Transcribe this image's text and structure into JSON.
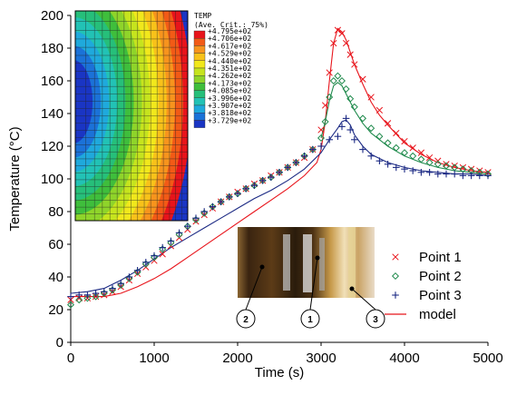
{
  "chart_data": {
    "type": "scatter",
    "xlabel": "Time (s)",
    "ylabel": "Temperature (°C)",
    "xlim": [
      0,
      5000
    ],
    "ylim": [
      0,
      200
    ],
    "xticks": [
      0,
      1000,
      2000,
      3000,
      4000,
      5000
    ],
    "yticks": [
      0,
      20,
      40,
      60,
      80,
      100,
      120,
      140,
      160,
      180,
      200
    ],
    "legend_position": "right",
    "series": [
      {
        "name": "Point 1",
        "marker": "x",
        "color": "#e8141b",
        "x": [
          0,
          100,
          200,
          300,
          400,
          500,
          600,
          700,
          800,
          900,
          1000,
          1100,
          1200,
          1300,
          1400,
          1500,
          1600,
          1700,
          1800,
          1900,
          2000,
          2100,
          2200,
          2300,
          2400,
          2500,
          2600,
          2700,
          2800,
          2900,
          3000,
          3050,
          3100,
          3150,
          3200,
          3250,
          3300,
          3350,
          3400,
          3500,
          3600,
          3700,
          3800,
          3900,
          4000,
          4100,
          4200,
          4300,
          4400,
          4500,
          4600,
          4700,
          4800,
          4900,
          5000
        ],
        "y": [
          26,
          27,
          27,
          28,
          29,
          31,
          34,
          38,
          42,
          46,
          50,
          54,
          59,
          64,
          69,
          74,
          78,
          82,
          86,
          89,
          92,
          94,
          97,
          99,
          102,
          104,
          107,
          110,
          113,
          118,
          130,
          145,
          165,
          183,
          191,
          189,
          183,
          176,
          170,
          161,
          150,
          142,
          134,
          128,
          123,
          119,
          116,
          113,
          111,
          109,
          108,
          107,
          106,
          105,
          104
        ]
      },
      {
        "name": "Point 2",
        "marker": "diamond",
        "color": "#1f8a4c",
        "x": [
          0,
          100,
          200,
          300,
          400,
          500,
          600,
          700,
          800,
          900,
          1000,
          1100,
          1200,
          1300,
          1400,
          1500,
          1600,
          1700,
          1800,
          1900,
          2000,
          2100,
          2200,
          2300,
          2400,
          2500,
          2600,
          2700,
          2800,
          2900,
          3000,
          3050,
          3100,
          3150,
          3200,
          3250,
          3300,
          3350,
          3400,
          3500,
          3600,
          3700,
          3800,
          3900,
          4000,
          4100,
          4200,
          4300,
          4400,
          4500,
          4600,
          4700,
          4800,
          4900,
          5000
        ],
        "y": [
          23,
          26,
          27,
          28,
          30,
          32,
          35,
          39,
          43,
          48,
          52,
          57,
          61,
          66,
          71,
          75,
          79,
          83,
          86,
          89,
          91,
          94,
          96,
          99,
          101,
          104,
          107,
          110,
          114,
          118,
          125,
          135,
          150,
          160,
          163,
          160,
          155,
          149,
          144,
          137,
          131,
          126,
          122,
          119,
          116,
          114,
          112,
          110,
          109,
          108,
          107,
          106,
          105,
          104,
          103
        ]
      },
      {
        "name": "Point 3",
        "marker": "plus",
        "color": "#1c2a84",
        "x": [
          0,
          100,
          200,
          300,
          400,
          500,
          600,
          700,
          800,
          900,
          1000,
          1100,
          1200,
          1300,
          1400,
          1500,
          1600,
          1700,
          1800,
          1900,
          2000,
          2100,
          2200,
          2300,
          2400,
          2500,
          2600,
          2700,
          2800,
          2900,
          3000,
          3100,
          3200,
          3250,
          3300,
          3350,
          3400,
          3500,
          3600,
          3700,
          3800,
          3900,
          4000,
          4100,
          4200,
          4300,
          4400,
          4500,
          4600,
          4700,
          4800,
          4900,
          5000
        ],
        "y": [
          28,
          29,
          29,
          30,
          31,
          33,
          36,
          40,
          44,
          49,
          53,
          58,
          62,
          67,
          71,
          76,
          80,
          83,
          86,
          89,
          91,
          94,
          96,
          99,
          101,
          104,
          107,
          110,
          114,
          118,
          120,
          124,
          126,
          132,
          137,
          130,
          124,
          118,
          114,
          111,
          109,
          107,
          106,
          105,
          104,
          104,
          103,
          103,
          103,
          102,
          102,
          102,
          102
        ]
      },
      {
        "name": "model",
        "marker": "none",
        "color": "#e8141b",
        "x": [
          0,
          200,
          400,
          600,
          800,
          1000,
          1200,
          1400,
          1600,
          1800,
          2000,
          2200,
          2400,
          2600,
          2800,
          2950,
          3000,
          3050,
          3100,
          3150,
          3200,
          3250,
          3300,
          3400,
          3500,
          3600,
          3700,
          3800,
          4000,
          4200,
          4400,
          4600,
          4800,
          5000
        ],
        "y": [
          28,
          28,
          28,
          30,
          34,
          39,
          45,
          52,
          59,
          66,
          73,
          80,
          87,
          94,
          102,
          110,
          118,
          135,
          160,
          183,
          192,
          190,
          185,
          170,
          158,
          147,
          139,
          133,
          122,
          115,
          110,
          107,
          105,
          104
        ]
      },
      {
        "name": "",
        "marker": "none",
        "color": "#1f8a4c",
        "x": [
          3000,
          3050,
          3100,
          3150,
          3200,
          3250,
          3300,
          3400,
          3500,
          3600,
          3800,
          4000,
          4200,
          4400,
          4600,
          4800,
          5000
        ],
        "y": [
          125,
          135,
          148,
          157,
          159,
          157,
          152,
          142,
          134,
          128,
          120,
          114,
          110,
          107,
          105,
          104,
          103
        ]
      },
      {
        "name": "",
        "marker": "none",
        "color": "#1c2a84",
        "x": [
          0,
          200,
          400,
          600,
          800,
          1000,
          1200,
          1400,
          1600,
          1800,
          2000,
          2200,
          2400,
          2600,
          2800,
          3000,
          3100,
          3200,
          3250,
          3300,
          3350,
          3400,
          3500,
          3600,
          3800,
          4000,
          4200,
          4400,
          4600,
          4800,
          5000
        ],
        "y": [
          30,
          31,
          33,
          38,
          44,
          51,
          58,
          64,
          70,
          76,
          82,
          88,
          93,
          99,
          106,
          116,
          124,
          131,
          135,
          136,
          133,
          127,
          120,
          115,
          110,
          107,
          105,
          104,
          103,
          103,
          102
        ]
      }
    ],
    "inset_contour": {
      "title": "TEMP",
      "subtitle": "(Ave. Crit.: 75%)",
      "levels": [
        "+4.795e+02",
        "+4.706e+02",
        "+4.617e+02",
        "+4.529e+02",
        "+4.440e+02",
        "+4.351e+02",
        "+4.262e+02",
        "+4.173e+02",
        "+4.085e+02",
        "+3.996e+02",
        "+3.907e+02",
        "+3.818e+02",
        "+3.729e+02"
      ],
      "colors": [
        "#e8141b",
        "#f25a16",
        "#f7941d",
        "#f8c21a",
        "#f1e81c",
        "#c6e41e",
        "#8fd42a",
        "#3fbe3c",
        "#26bf7a",
        "#22c2b5",
        "#1fa9dc",
        "#1b72d8",
        "#1a35c4"
      ]
    },
    "photo_callouts": [
      "2",
      "1",
      "3"
    ]
  }
}
